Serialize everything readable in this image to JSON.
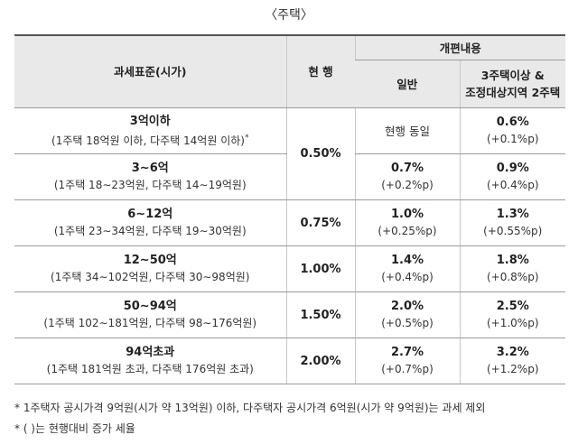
{
  "caption": "〈주택〉",
  "header": {
    "col1": "과세표준(시가)",
    "col2": "현 행",
    "group": "개편내용",
    "col3": "일반",
    "col4_line1": "3주택이상 &",
    "col4_line2": "조정대상지역 2주택"
  },
  "rows": [
    {
      "std": "3억이하",
      "detail": "(1주택 18억원 이하, 다주택 14억원 이하)",
      "mark": "*",
      "current": "0.50%",
      "general": "현행 동일",
      "general_delta": "",
      "multi": "0.6%",
      "multi_delta": "(+0.1%p)"
    },
    {
      "std": "3∼6억",
      "detail": "(1주택 18∼23억원, 다주택 14∼19억원)",
      "current": "",
      "general": "0.7%",
      "general_delta": "(+0.2%p)",
      "multi": "0.9%",
      "multi_delta": "(+0.4%p)"
    },
    {
      "std": "6∼12억",
      "detail": "(1주택 23∼34억원, 다주택 19∼30억원)",
      "current": "0.75%",
      "general": "1.0%",
      "general_delta": "(+0.25%p)",
      "multi": "1.3%",
      "multi_delta": "(+0.55%p)"
    },
    {
      "std": "12∼50억",
      "detail": "(1주택 34∼102억원, 다주택 30∼98억원)",
      "current": "1.00%",
      "general": "1.4%",
      "general_delta": "(+0.4%p)",
      "multi": "1.8%",
      "multi_delta": "(+0.8%p)"
    },
    {
      "std": "50∼94억",
      "detail": "(1주택 102∼181억원, 다주택 98∼176억원)",
      "current": "1.50%",
      "general": "2.0%",
      "general_delta": "(+0.5%p)",
      "multi": "2.5%",
      "multi_delta": "(+1.0%p)"
    },
    {
      "std": "94억초과",
      "detail": "(1주택 181억원 초과, 다주택 176억원 초과)",
      "current": "2.00%",
      "general": "2.7%",
      "general_delta": "(+0.7%p)",
      "multi": "3.2%",
      "multi_delta": "(+1.2%p)"
    }
  ],
  "notes": [
    "* 1주택자 공시가격 9억원(시가 약 13억원) 이하, 다주택자 공시가격 6억원(시가 약 9억원)는 과세 제외",
    "* ( )는 현행대비 증가 세율"
  ]
}
